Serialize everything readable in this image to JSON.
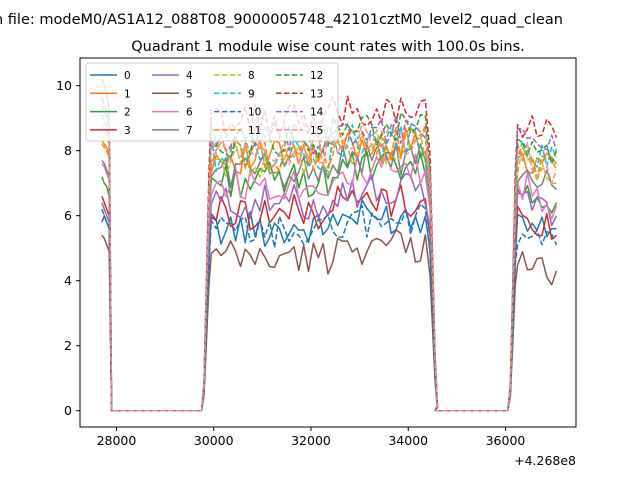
{
  "figure": {
    "suptitle": "n file: modeM0/AS1A12_088T08_9000005748_42101cztM0_level2_quad_clean",
    "title": "Quadrant 1 module wise count rates with 100.0s bins.",
    "x_offset_label": "+4.268e8"
  },
  "chart_data": {
    "type": "line",
    "title": "Quadrant 1 module wise count rates with 100.0s bins.",
    "xlabel": "",
    "ylabel": "",
    "x_offset": 426800000,
    "xlim": [
      27250,
      37450
    ],
    "ylim": [
      -0.5,
      10.85
    ],
    "xticks": [
      28000,
      30000,
      32000,
      34000,
      36000
    ],
    "xtick_labels": [
      "28000",
      "30000",
      "32000",
      "34000",
      "36000"
    ],
    "yticks": [
      0,
      2,
      4,
      6,
      8,
      10
    ],
    "ytick_labels": [
      "0",
      "2",
      "4",
      "6",
      "8",
      "10"
    ],
    "grid": false,
    "legend": {
      "placement": "top-left",
      "columns": 4
    },
    "bin_seconds": 100,
    "segments": [
      {
        "start": 27700,
        "step": 50,
        "n": 4
      },
      {
        "start": 27900,
        "step": 100,
        "n": 19
      },
      {
        "start": 29750,
        "step": 50,
        "n": 4
      },
      {
        "start": 29950,
        "step": 100,
        "n": 45
      },
      {
        "start": 34450,
        "step": 50,
        "n": 4
      },
      {
        "start": 34550,
        "step": 100,
        "n": 15
      },
      {
        "start": 36050,
        "step": 50,
        "n": 4
      },
      {
        "start": 36250,
        "step": 100,
        "n": 9
      }
    ],
    "series": [
      {
        "name": "0",
        "color": "#1f77b4",
        "dash": "solid",
        "first": [
          5.8,
          6.0,
          5.8,
          5.6
        ],
        "level": 5.6,
        "tail": 5.6
      },
      {
        "name": "1",
        "color": "#ff7f0e",
        "dash": "solid",
        "first": [
          8.3,
          8.2,
          8.1,
          7.8
        ],
        "level": 7.8,
        "tail": 7.6
      },
      {
        "name": "2",
        "color": "#2ca02c",
        "dash": "solid",
        "first": [
          7.2,
          7.0,
          6.9,
          6.6
        ],
        "level": 7.1,
        "tail": 6.4
      },
      {
        "name": "3",
        "color": "#d62728",
        "dash": "solid",
        "first": [
          6.6,
          6.4,
          6.2,
          6.0
        ],
        "level": 6.1,
        "tail": 5.4
      },
      {
        "name": "4",
        "color": "#9467bd",
        "dash": "solid",
        "first": [
          6.4,
          6.2,
          6.0,
          5.8
        ],
        "level": 6.4,
        "tail": 6.0
      },
      {
        "name": "5",
        "color": "#8c564b",
        "dash": "solid",
        "first": [
          5.4,
          5.3,
          5.1,
          4.9
        ],
        "level": 4.7,
        "tail": 4.3
      },
      {
        "name": "6",
        "color": "#e377c2",
        "dash": "solid",
        "first": [
          7.6,
          7.5,
          7.3,
          7.1
        ],
        "level": 7.0,
        "tail": 6.3
      },
      {
        "name": "7",
        "color": "#7f7f7f",
        "dash": "solid",
        "first": [
          7.7,
          7.6,
          7.4,
          7.2
        ],
        "level": 7.4,
        "tail": 6.8
      },
      {
        "name": "8",
        "color": "#bcbd22",
        "dash": "dashed",
        "first": [
          8.8,
          8.6,
          8.4,
          8.2
        ],
        "level": 7.7,
        "tail": 7.0
      },
      {
        "name": "9",
        "color": "#17becf",
        "dash": "dashed",
        "first": [
          9.4,
          9.2,
          9.0,
          8.7
        ],
        "level": 7.9,
        "tail": 7.8
      },
      {
        "name": "10",
        "color": "#1f77b4",
        "dash": "dashed",
        "first": [
          6.2,
          6.0,
          5.8,
          5.6
        ],
        "level": 5.5,
        "tail": 5.1
      },
      {
        "name": "11",
        "color": "#ff7f0e",
        "dash": "dashed",
        "first": [
          8.2,
          8.1,
          8.0,
          7.8
        ],
        "level": 7.9,
        "tail": 7.4
      },
      {
        "name": "12",
        "color": "#2ca02c",
        "dash": "dashed",
        "first": [
          9.6,
          9.4,
          9.2,
          8.9
        ],
        "level": 8.3,
        "tail": 8.0
      },
      {
        "name": "13",
        "color": "#d62728",
        "dash": "dashed",
        "first": [
          10.2,
          10.0,
          9.7,
          9.3
        ],
        "level": 8.9,
        "tail": 8.4
      },
      {
        "name": "14",
        "color": "#9467bd",
        "dash": "dashed",
        "first": [
          9.1,
          8.9,
          8.7,
          8.4
        ],
        "level": 8.3,
        "tail": 8.0
      },
      {
        "name": "15",
        "color": "#e8978a",
        "dash": "dashed",
        "first": [
          10.4,
          10.0,
          9.6,
          9.2
        ],
        "level": 8.0,
        "tail": 7.4
      }
    ]
  }
}
